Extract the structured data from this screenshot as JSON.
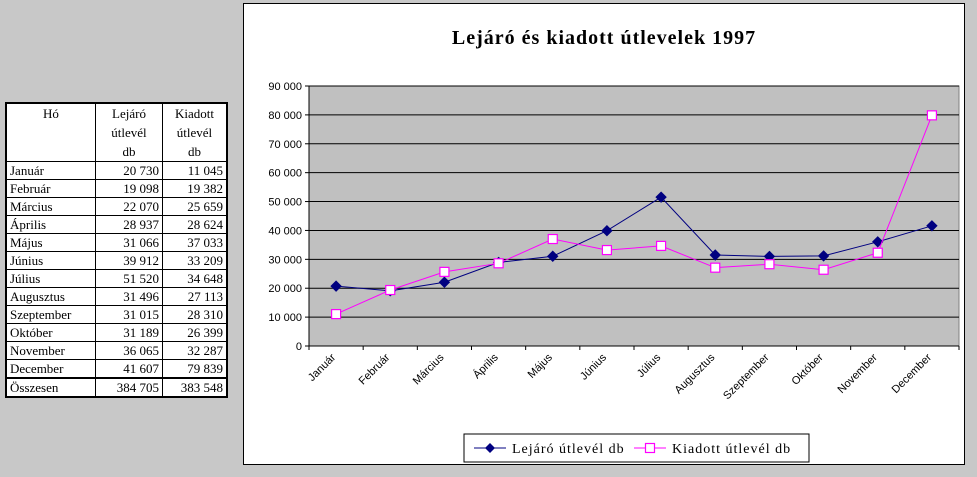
{
  "table": {
    "headers": {
      "month": "Hó",
      "expiring": [
        "Lejáró",
        "útlevél",
        "db"
      ],
      "issued": [
        "Kiadott",
        "útlevél",
        "db"
      ]
    },
    "rows": [
      {
        "month": "Január",
        "expiring": "20 730",
        "issued": "11 045"
      },
      {
        "month": "Február",
        "expiring": "19 098",
        "issued": "19 382"
      },
      {
        "month": "Március",
        "expiring": "22 070",
        "issued": "25 659"
      },
      {
        "month": "Április",
        "expiring": "28 937",
        "issued": "28 624"
      },
      {
        "month": "Május",
        "expiring": "31 066",
        "issued": "37 033"
      },
      {
        "month": "Június",
        "expiring": "39 912",
        "issued": "33 209"
      },
      {
        "month": "Július",
        "expiring": "51 520",
        "issued": "34 648"
      },
      {
        "month": "Augusztus",
        "expiring": "31 496",
        "issued": "27 113"
      },
      {
        "month": "Szeptember",
        "expiring": "31 015",
        "issued": "28 310"
      },
      {
        "month": "Október",
        "expiring": "31 189",
        "issued": "26 399"
      },
      {
        "month": "November",
        "expiring": "36 065",
        "issued": "32 287"
      },
      {
        "month": "December",
        "expiring": "41 607",
        "issued": "79 839"
      }
    ],
    "total": {
      "month": "Összesen",
      "expiring": "384 705",
      "issued": "383 548"
    }
  },
  "chart_data": {
    "type": "line",
    "title": "Lejáró és kiadott útlevelek 1997",
    "categories": [
      "Január",
      "Február",
      "Március",
      "Április",
      "Május",
      "Június",
      "Július",
      "Augusztus",
      "Szeptember",
      "Október",
      "November",
      "December"
    ],
    "series": [
      {
        "name": "Lejáró útlevél db",
        "color": "#000080",
        "marker": "diamond",
        "values": [
          20730,
          19098,
          22070,
          28937,
          31066,
          39912,
          51520,
          31496,
          31015,
          31189,
          36065,
          41607
        ]
      },
      {
        "name": "Kiadott útlevél db",
        "color": "#ff00ff",
        "marker": "square",
        "values": [
          11045,
          19382,
          25659,
          28624,
          37033,
          33209,
          34648,
          27113,
          28310,
          26399,
          32287,
          79839
        ]
      }
    ],
    "ylim": [
      0,
      90000
    ],
    "yticks": [
      "0",
      "10 000",
      "20 000",
      "30 000",
      "40 000",
      "50 000",
      "60 000",
      "70 000",
      "80 000",
      "90 000"
    ],
    "grid": true,
    "plot_background": "#c0c0c0",
    "legend_position": "bottom"
  }
}
